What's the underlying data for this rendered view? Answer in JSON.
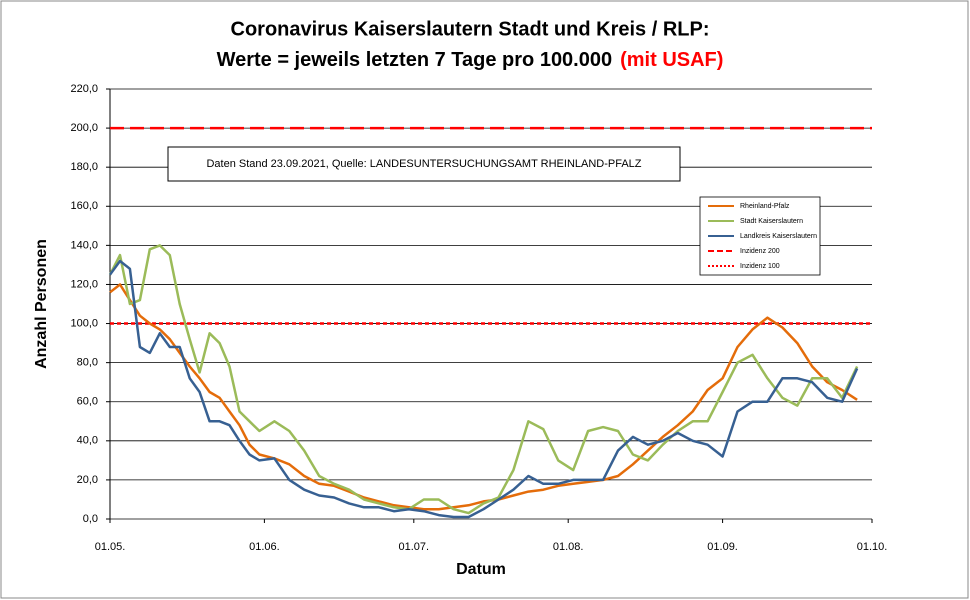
{
  "chart_data": {
    "type": "line",
    "title": "Coronavirus Kaiserslautern Stadt und Kreis / RLP:",
    "subtitle": "Werte = jeweils letzten 7 Tage pro 100.000",
    "subtitle_highlight": "(mit USAF)",
    "annotation": "Daten Stand 23.09.2021, Quelle: LANDESUNTERSUCHUNGSAMT RHEINLAND-PFALZ",
    "xlabel": "Datum",
    "ylabel": "Anzahl Personen",
    "x": [
      "01.05.",
      "03.05.",
      "05.05.",
      "07.05.",
      "09.05.",
      "11.05.",
      "13.05.",
      "15.05.",
      "17.05.",
      "19.05.",
      "21.05.",
      "23.05.",
      "25.05.",
      "27.05.",
      "29.05.",
      "31.05.",
      "03.06.",
      "06.06.",
      "09.06.",
      "12.06.",
      "15.06.",
      "18.06.",
      "21.06.",
      "24.06.",
      "27.06.",
      "30.06.",
      "03.07.",
      "06.07.",
      "09.07.",
      "12.07.",
      "15.07.",
      "18.07.",
      "21.07.",
      "24.07.",
      "27.07.",
      "30.07.",
      "02.08.",
      "05.08.",
      "08.08.",
      "11.08.",
      "14.08.",
      "17.08.",
      "20.08.",
      "23.08.",
      "26.08.",
      "29.08.",
      "01.09.",
      "04.09.",
      "07.09.",
      "10.09.",
      "13.09.",
      "16.09.",
      "19.09.",
      "22.09.",
      "25.09.",
      "28.09."
    ],
    "series": [
      {
        "name": "Rheinland-Pfalz",
        "color": "#e46c0a",
        "values": [
          116,
          120,
          112,
          104,
          100,
          97,
          92,
          85,
          78,
          72,
          65,
          62,
          55,
          48,
          38,
          33,
          31,
          28,
          22,
          18,
          17,
          14,
          11,
          9,
          7,
          6,
          5,
          5,
          6,
          7,
          9,
          10,
          12,
          14,
          15,
          17,
          18,
          19,
          20,
          22,
          28,
          35,
          42,
          48,
          55,
          66,
          72,
          88,
          97,
          103,
          98,
          90,
          78,
          70,
          66,
          61
        ]
      },
      {
        "name": "Stadt Kaiserslautern",
        "color": "#9bbb59",
        "values": [
          125,
          135,
          110,
          112,
          138,
          140,
          135,
          110,
          92,
          75,
          95,
          90,
          78,
          55,
          50,
          45,
          50,
          45,
          35,
          22,
          18,
          15,
          10,
          8,
          6,
          5,
          10,
          10,
          5,
          3,
          8,
          11,
          25,
          50,
          46,
          30,
          25,
          45,
          47,
          45,
          33,
          30,
          38,
          45,
          50,
          50,
          65,
          80,
          84,
          72,
          62,
          58,
          72,
          72,
          62,
          78
        ]
      },
      {
        "name": "Landkreis Kaiserslautern",
        "color": "#376092",
        "values": [
          125,
          132,
          128,
          88,
          85,
          95,
          88,
          88,
          72,
          65,
          50,
          50,
          48,
          40,
          33,
          30,
          31,
          20,
          15,
          12,
          11,
          8,
          6,
          6,
          4,
          5,
          4,
          2,
          1,
          1,
          5,
          10,
          15,
          22,
          18,
          18,
          20,
          20,
          20,
          35,
          42,
          38,
          40,
          44,
          40,
          38,
          32,
          55,
          60,
          60,
          72,
          72,
          70,
          62,
          60,
          77
        ]
      }
    ],
    "reference_lines": [
      {
        "name": "Inzidenz 200",
        "value": 200,
        "color": "#ff0000",
        "dash": "14 6"
      },
      {
        "name": "Inzidenz 100",
        "value": 100,
        "color": "#ff0000",
        "dash": "4 3"
      }
    ],
    "xlim": [
      "01.05.",
      "01.10."
    ],
    "xticks": [
      "01.05.",
      "01.06.",
      "01.07.",
      "01.08.",
      "01.09.",
      "01.10."
    ],
    "ylim": [
      0,
      220
    ],
    "yticks": [
      {
        "value": 0,
        "label": "0,0"
      },
      {
        "value": 20,
        "label": "20,0"
      },
      {
        "value": 40,
        "label": "40,0"
      },
      {
        "value": 60,
        "label": "60,0"
      },
      {
        "value": 80,
        "label": "80,0"
      },
      {
        "value": 100,
        "label": "100,0"
      },
      {
        "value": 120,
        "label": "120,0"
      },
      {
        "value": 140,
        "label": "140,0"
      },
      {
        "value": 160,
        "label": "160,0"
      },
      {
        "value": 180,
        "label": "180,0"
      },
      {
        "value": 200,
        "label": "200,0"
      },
      {
        "value": 220,
        "label": "220,0"
      }
    ],
    "grid": true
  }
}
